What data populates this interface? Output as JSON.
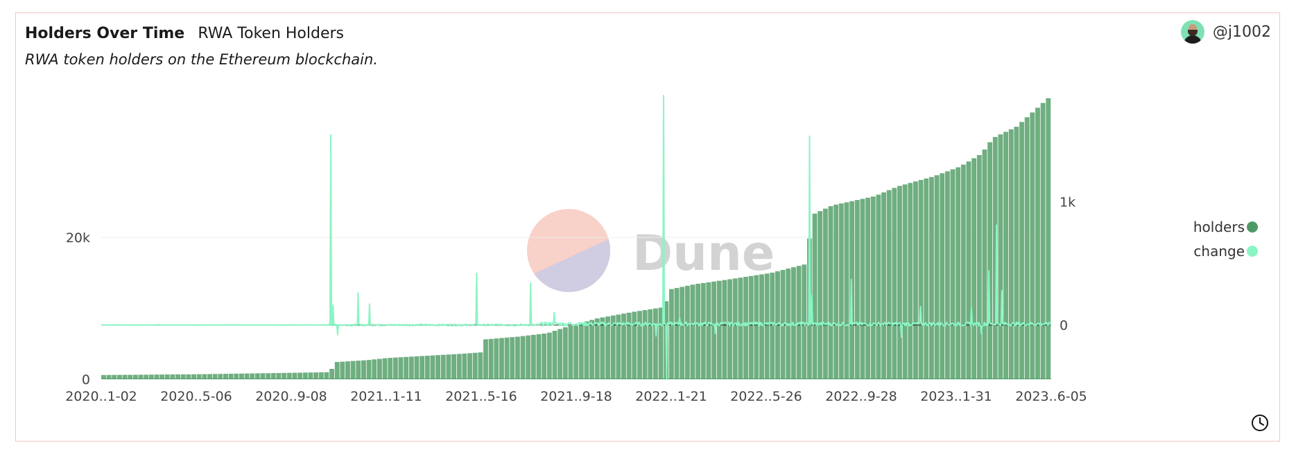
{
  "header": {
    "title": "Holders Over Time",
    "subtitle": "RWA Token Holders",
    "description": "RWA token holders on the Ethereum blockchain."
  },
  "author": {
    "handle": "@j1002",
    "icon": "avatar"
  },
  "footer": {
    "icon": "clock-icon"
  },
  "watermark": "Dune",
  "colors": {
    "holders": "#4e9a66",
    "holders_fill": "#6fae80",
    "change": "#8af5c4"
  },
  "chart_data": {
    "type": "bar+line",
    "x_tick_labels": [
      "2020..1-02",
      "2020..5-06",
      "2020..9-08",
      "2021..1-11",
      "2021..5-16",
      "2021..9-18",
      "2022..1-21",
      "2022..5-26",
      "2022..9-28",
      "2023..1-31",
      "2023..6-05"
    ],
    "x_range": [
      "2020-01-02",
      "2023-06-05"
    ],
    "left_axis": {
      "ticks": [
        0,
        20000
      ],
      "tick_labels": [
        "0",
        "20k"
      ],
      "range": [
        0,
        40000
      ]
    },
    "right_axis": {
      "ticks": [
        0,
        1000
      ],
      "tick_labels": [
        "0",
        "1k"
      ],
      "range": [
        -440,
        1860
      ]
    },
    "legend": {
      "position": "right",
      "entries": [
        "holders",
        "change"
      ]
    },
    "series": [
      {
        "name": "holders",
        "type": "bar",
        "axis": "left",
        "points": [
          [
            "2020-01-02",
            600
          ],
          [
            "2020-05-01",
            700
          ],
          [
            "2020-09-01",
            900
          ],
          [
            "2020-10-28",
            1000
          ],
          [
            "2020-10-31",
            2400
          ],
          [
            "2020-12-15",
            2700
          ],
          [
            "2021-01-11",
            3000
          ],
          [
            "2021-03-01",
            3300
          ],
          [
            "2021-04-20",
            3600
          ],
          [
            "2021-05-15",
            3800
          ],
          [
            "2021-05-17",
            5600
          ],
          [
            "2021-07-01",
            6000
          ],
          [
            "2021-08-10",
            6500
          ],
          [
            "2021-09-01",
            7300
          ],
          [
            "2021-10-15",
            8600
          ],
          [
            "2021-12-01",
            9500
          ],
          [
            "2022-01-12",
            10200
          ],
          [
            "2022-01-15",
            12600
          ],
          [
            "2022-02-20",
            13400
          ],
          [
            "2022-04-01",
            14000
          ],
          [
            "2022-06-01",
            15000
          ],
          [
            "2022-07-15",
            16200
          ],
          [
            "2022-07-20",
            19000
          ],
          [
            "2022-07-25",
            23200
          ],
          [
            "2022-08-20",
            24500
          ],
          [
            "2022-10-15",
            25800
          ],
          [
            "2022-11-15",
            27200
          ],
          [
            "2023-01-01",
            28600
          ],
          [
            "2023-02-05",
            30000
          ],
          [
            "2023-03-05",
            31800
          ],
          [
            "2023-03-20",
            34000
          ],
          [
            "2023-04-20",
            35600
          ],
          [
            "2023-06-05",
            40000
          ]
        ]
      },
      {
        "name": "change",
        "type": "line",
        "axis": "right",
        "spikes": [
          [
            "2020-10-30",
            1540
          ],
          [
            "2020-11-02",
            160
          ],
          [
            "2020-11-08",
            -80
          ],
          [
            "2020-12-05",
            260
          ],
          [
            "2020-12-20",
            170
          ],
          [
            "2021-05-10",
            420
          ],
          [
            "2021-07-20",
            340
          ],
          [
            "2021-08-20",
            100
          ],
          [
            "2022-01-11",
            1860
          ],
          [
            "2022-01-15",
            -440
          ],
          [
            "2022-02-01",
            60
          ],
          [
            "2022-07-22",
            1530
          ],
          [
            "2022-07-25",
            240
          ],
          [
            "2022-09-15",
            370
          ],
          [
            "2022-12-15",
            150
          ],
          [
            "2023-03-15",
            440
          ],
          [
            "2023-03-25",
            810
          ],
          [
            "2023-04-01",
            280
          ],
          [
            "2023-03-05",
            -70
          ],
          [
            "2022-01-01",
            -90
          ],
          [
            "2022-03-20",
            -70
          ],
          [
            "2022-11-20",
            -100
          ],
          [
            "2023-02-20",
            140
          ]
        ]
      }
    ]
  }
}
